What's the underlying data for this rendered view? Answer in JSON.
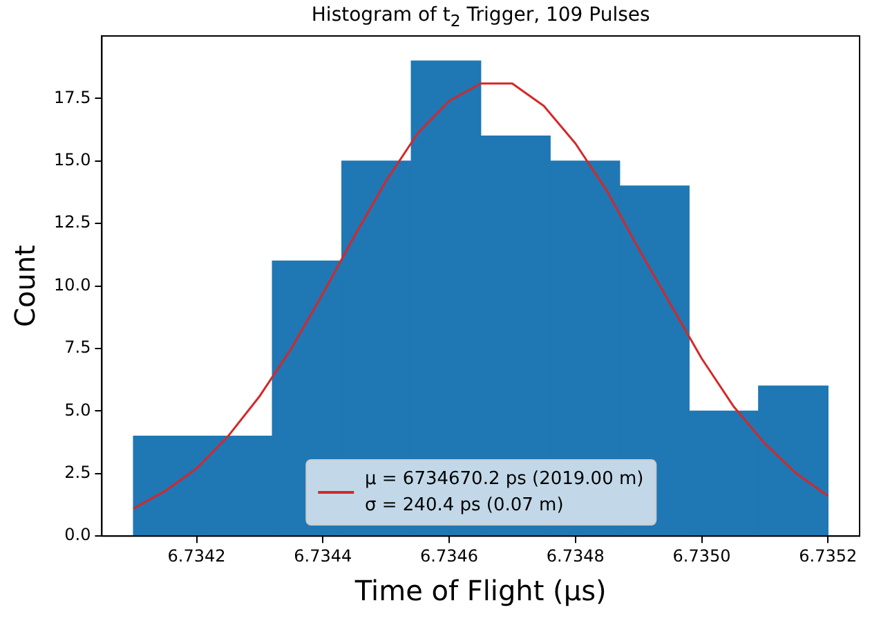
{
  "chart_data": {
    "type": "histogram",
    "title": "Histogram of t$_{2}$ Trigger, 109 Pulses",
    "xlabel": "Time of Flight (µs)",
    "ylabel": "Count",
    "bins": [
      6.7341,
      6.73421,
      6.73432,
      6.73443,
      6.73454,
      6.73465,
      6.73476,
      6.73487,
      6.73498,
      6.73509,
      6.7352
    ],
    "series": [
      {
        "color": "#1f77b4",
        "values": [
          4,
          4,
          11,
          15,
          19,
          16,
          15,
          14,
          5,
          6
        ]
      },
      {
        "type": "line",
        "name": "μ = 6734670.2 ps (2019.00 m)\nσ = 240.4 ps (0.07 m)",
        "color": "#d62728",
        "x": [
          6.7341,
          6.73415,
          6.7342,
          6.73425,
          6.7343,
          6.73435,
          6.7344,
          6.73445,
          6.7345,
          6.73455,
          6.7346,
          6.73465,
          6.7347,
          6.73475,
          6.7348,
          6.73485,
          6.7349,
          6.73495,
          6.735,
          6.73505,
          6.7351,
          6.73515,
          6.7352
        ],
        "values": [
          1.1,
          1.8,
          2.7,
          4.0,
          5.6,
          7.5,
          9.7,
          12.0,
          14.2,
          16.1,
          17.4,
          18.1,
          18.1,
          17.2,
          15.7,
          13.8,
          11.5,
          9.3,
          7.1,
          5.2,
          3.7,
          2.5,
          1.6
        ]
      }
    ],
    "xlim": [
      6.73405,
      6.73525
    ],
    "ylim": [
      0,
      20
    ],
    "xticks": [
      6.7342,
      6.7344,
      6.7346,
      6.7348,
      {
        "value": 6.735,
        "label": "6.7350"
      },
      6.7352
    ],
    "yticks": [
      {
        "value": 0,
        "label": "0.0"
      },
      2.5,
      {
        "value": 5,
        "label": "5.0"
      },
      7.5,
      {
        "value": 10,
        "label": "10.0"
      },
      12.5,
      {
        "value": 15,
        "label": "15.0"
      },
      17.5
    ],
    "grid": false,
    "legend": "bottom",
    "marker": "none",
    "line_style": "solid"
  }
}
